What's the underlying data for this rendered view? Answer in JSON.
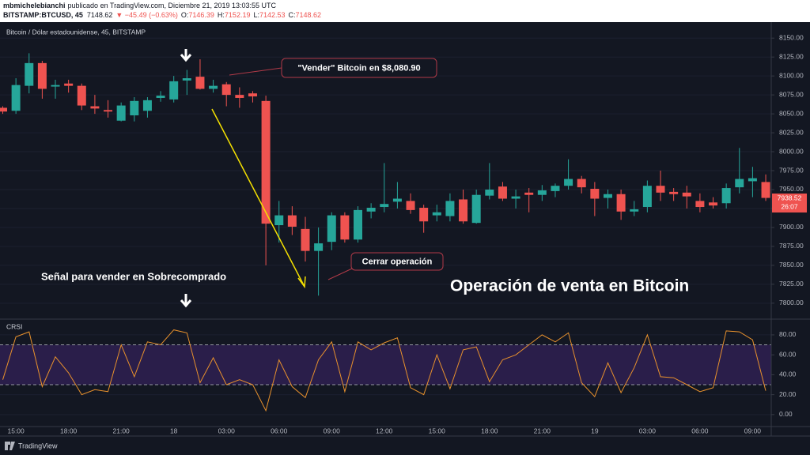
{
  "header": {
    "publisher": "mbmichelebianchi",
    "published": "publicado en TradingView.com, Diciembre 21, 2019 13:03:55 UTC",
    "symbol": "BITSTAMP:BTCUSD, 45",
    "last": "7148.62",
    "change": "▼ −45.49 (−0.63%)",
    "quote": [
      {
        "label": "O:",
        "value": "7146.39"
      },
      {
        "label": "H:",
        "value": "7152.19"
      },
      {
        "label": "L:",
        "value": "7142.53"
      },
      {
        "label": "C:",
        "value": "7148.62"
      }
    ]
  },
  "annotations": {
    "sell_callout": "\"Vender\" Bitcoin en $8,080.90",
    "close_callout": "Cerrar operación",
    "signal": "Señal para vender en Sobrecomprado",
    "headline": "Operación de venta en Bitcoin"
  },
  "footer": {
    "brand": "TradingView"
  },
  "chart_data": [
    {
      "type": "candlestick",
      "title": "Bitcoin / Dólar estadounidense, 45, BITSTAMP",
      "categories": [
        null,
        "15:00",
        null,
        null,
        null,
        "18:00",
        null,
        null,
        null,
        "21:00",
        null,
        null,
        null,
        "18",
        null,
        null,
        null,
        "03:00",
        null,
        null,
        null,
        "06:00",
        null,
        null,
        null,
        "09:00",
        null,
        null,
        null,
        "12:00",
        null,
        null,
        null,
        "15:00",
        null,
        null,
        null,
        "18:00",
        null,
        null,
        null,
        "21:00",
        null,
        null,
        null,
        "19",
        null,
        null,
        null,
        "03:00",
        null,
        null,
        null,
        "06:00",
        null,
        null,
        null,
        "09:00",
        null
      ],
      "open": [
        8058,
        8054,
        8087,
        8117,
        8086,
        8090,
        8087,
        8060,
        8055,
        8041,
        8048,
        8054,
        8071,
        8069,
        8094,
        8099,
        8083,
        8089,
        8075,
        8077,
        8067,
        7903,
        7916,
        7898,
        7869,
        7881,
        7916,
        7884,
        7921,
        7927,
        7934,
        7935,
        7926,
        7916,
        7915,
        7937,
        7906,
        7942,
        7954,
        7938,
        7946,
        7943,
        7948,
        7955,
        7964,
        7951,
        7939,
        7944,
        7921,
        7927,
        7955,
        7947,
        7946,
        7935,
        7933,
        7932,
        7953,
        7961,
        7960
      ],
      "high": [
        8060,
        8097,
        8130,
        8120,
        8095,
        8095,
        8090,
        8075,
        8068,
        8065,
        8072,
        8072,
        8080,
        8100,
        8108,
        8122,
        8095,
        8092,
        8085,
        8080,
        8074,
        7935,
        7928,
        7914,
        7900,
        7920,
        7920,
        7928,
        7932,
        7985,
        7960,
        7945,
        7930,
        7930,
        7945,
        7950,
        7950,
        7985,
        7960,
        7950,
        7952,
        7956,
        7958,
        7990,
        7968,
        7960,
        7950,
        7950,
        7935,
        7962,
        7975,
        7952,
        7955,
        7945,
        7940,
        7958,
        8005,
        7980,
        7970
      ],
      "low": [
        8050,
        8050,
        8077,
        8070,
        8070,
        8078,
        8055,
        8050,
        8045,
        8040,
        8040,
        8045,
        8066,
        8065,
        8075,
        8082,
        8078,
        8060,
        8058,
        8065,
        7850,
        7880,
        7890,
        7855,
        7810,
        7870,
        7880,
        7880,
        7912,
        7920,
        7925,
        7918,
        7893,
        7908,
        7908,
        7905,
        7905,
        7937,
        7935,
        7925,
        7920,
        7935,
        7940,
        7950,
        7945,
        7915,
        7925,
        7910,
        7915,
        7920,
        7935,
        7935,
        7925,
        7920,
        7925,
        7925,
        7945,
        7940,
        7935
      ],
      "close": [
        8053,
        8088,
        8117,
        8083,
        8088,
        8087,
        8061,
        8057,
        8053,
        8061,
        8067,
        8068,
        8074,
        8093,
        8097,
        8083,
        8087,
        8075,
        8071,
        8073,
        7905,
        7916,
        7901,
        7869,
        7879,
        7916,
        7884,
        7923,
        7926,
        7931,
        7938,
        7923,
        7908,
        7920,
        7935,
        7908,
        7943,
        7950,
        7938,
        7941,
        7943,
        7949,
        7955,
        7964,
        7953,
        7938,
        7944,
        7921,
        7924,
        7955,
        7946,
        7944,
        7941,
        7927,
        7929,
        7952,
        7964,
        7965,
        7939
      ],
      "up_color": "#26a69a",
      "down_color": "#ef5350",
      "last_price": 7938.52,
      "countdown": "26:07",
      "ylim": [
        7780,
        8169
      ],
      "yticks": [
        {
          "value": 7800,
          "label": "7800.00"
        },
        {
          "value": 7825,
          "label": "7825.00"
        },
        {
          "value": 7850,
          "label": "7850.00"
        },
        {
          "value": 7875,
          "label": "7875.00"
        },
        {
          "value": 7900,
          "label": "7900.00"
        },
        {
          "value": 7925,
          "label": "7925.00"
        },
        {
          "value": 7950,
          "label": "7950.00"
        },
        {
          "value": 7975,
          "label": "7975.00"
        },
        {
          "value": 8000,
          "label": "8000.00"
        },
        {
          "value": 8025,
          "label": "8025.00"
        },
        {
          "value": 8050,
          "label": "8050.00"
        },
        {
          "value": 8075,
          "label": "8075.00"
        },
        {
          "value": 8100,
          "label": "8100.00"
        },
        {
          "value": 8125,
          "label": "8125.00"
        },
        {
          "value": 8150,
          "label": "8150.00"
        }
      ],
      "grid": true
    },
    {
      "type": "line",
      "title": "CRSI",
      "color": "#e8912d",
      "values": [
        35,
        78,
        83,
        28,
        58,
        42,
        20,
        25,
        23,
        70,
        38,
        73,
        70,
        85,
        82,
        32,
        57,
        30,
        35,
        30,
        4,
        55,
        28,
        17,
        55,
        73,
        23,
        73,
        65,
        72,
        77,
        27,
        20,
        60,
        26,
        65,
        68,
        33,
        55,
        60,
        70,
        80,
        73,
        82,
        32,
        18,
        52,
        22,
        47,
        80,
        38,
        37,
        30,
        23,
        27,
        84,
        83,
        75,
        24
      ],
      "band": [
        30,
        70
      ],
      "band_color": "#2a1e4a",
      "ylim": [
        -12,
        95
      ],
      "yticks": [
        {
          "value": 0,
          "label": "0.00"
        },
        {
          "value": 20,
          "label": "20.00"
        },
        {
          "value": 40,
          "label": "40.00"
        },
        {
          "value": 60,
          "label": "60.00"
        },
        {
          "value": 80,
          "label": "80.00"
        }
      ],
      "grid": true
    }
  ]
}
